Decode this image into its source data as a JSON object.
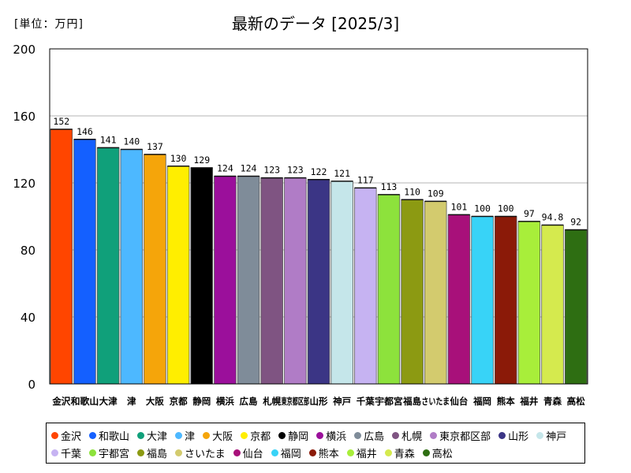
{
  "unit_label": "[単位：万円]",
  "chart_data": {
    "type": "bar",
    "title": "最新のデータ [2025/3]",
    "ylabel": "万円",
    "ylim": [
      0,
      200
    ],
    "yticks": [
      0,
      40,
      80,
      120,
      160,
      200
    ],
    "grid": true,
    "legend_position": "bottom",
    "categories": [
      "金沢",
      "和歌山",
      "大津",
      "津",
      "大阪",
      "京都",
      "静岡",
      "横浜",
      "広島",
      "札幌",
      "東京都区部",
      "山形",
      "神戸",
      "千葉",
      "宇都宮",
      "福島",
      "さいたま",
      "仙台",
      "福岡",
      "熊本",
      "福井",
      "青森",
      "高松"
    ],
    "tick_labels": [
      "金沢",
      "和歌山",
      "大津",
      "津",
      "大阪",
      "京都",
      "静岡",
      "横浜",
      "広島",
      "札幌",
      "東京都区部",
      "山形",
      "神戸",
      "千葉",
      "宇都宮",
      "福島",
      "さいたま",
      "仙台",
      "福岡",
      "熊本",
      "福井",
      "青森",
      "高松"
    ],
    "values": [
      152,
      146,
      141,
      140,
      137,
      130,
      129,
      124,
      124,
      123,
      123,
      122,
      121,
      117,
      113,
      110,
      109,
      101,
      100,
      100,
      97,
      94.8,
      92
    ],
    "value_labels": [
      "152",
      "146",
      "141",
      "140",
      "137",
      "130",
      "129",
      "124",
      "124",
      "123",
      "123",
      "122",
      "121",
      "117",
      "113",
      "110",
      "109",
      "101",
      "100",
      "100",
      "97",
      "94.8",
      "92"
    ],
    "colors": [
      "#ff4500",
      "#1460ff",
      "#10a07a",
      "#4db8ff",
      "#f5a50a",
      "#ffee00",
      "#000000",
      "#9b0f9b",
      "#7f8c99",
      "#7f5482",
      "#b07cc6",
      "#3b3585",
      "#c5e6ea",
      "#c6b3f2",
      "#8de23c",
      "#8c9a12",
      "#d3cb6e",
      "#a8107a",
      "#38d3f7",
      "#8b1a08",
      "#a8ee3a",
      "#d5ea4e",
      "#2e6e12"
    ]
  }
}
